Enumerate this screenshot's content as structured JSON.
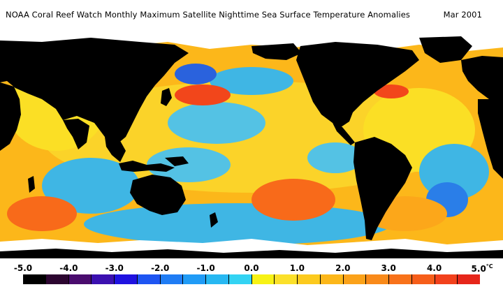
{
  "title": "NOAA Coral Reef Watch Monthly Maximum Satellite Nighttime Sea Surface Temperature Anomalies",
  "date": "Mar 2001",
  "colors": {
    "land": "#000000",
    "ice": "#ffffff",
    "ocean_warm": "#fcb71a",
    "ocean_hot": "#f8661a",
    "ocean_neutral": "#fbe226",
    "ocean_cool": "#35b6ef",
    "ocean_cold": "#1f5ee8"
  },
  "legend": {
    "unit": "°C",
    "ticks": [
      "-5.0",
      "-4.0",
      "-3.0",
      "-2.0",
      "-1.0",
      "0.0",
      "1.0",
      "2.0",
      "3.0",
      "4.0",
      "5.0"
    ],
    "swatches": [
      "#000000",
      "#2c0530",
      "#4a0c6e",
      "#3b10b0",
      "#1f12e0",
      "#1e55f2",
      "#1f7cf4",
      "#209bf6",
      "#27b8f2",
      "#33d3f3",
      "#f7f215",
      "#fbe02a",
      "#fcca1e",
      "#fcb71a",
      "#fba21a",
      "#f98a1a",
      "#f8721a",
      "#f65e1a",
      "#f2411c",
      "#e6261a"
    ]
  }
}
